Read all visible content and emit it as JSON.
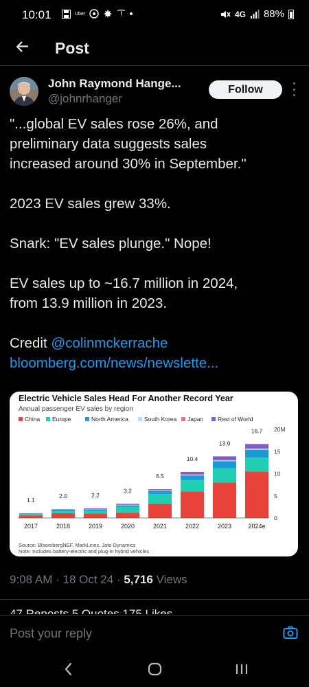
{
  "status_bar": {
    "time": "10:01",
    "left_icons": [
      "save-icon",
      "uber-icon",
      "wifi-call-icon",
      "maple-leaf-icon",
      "tesla-icon",
      "dot-icon"
    ],
    "uber_label": "Uber",
    "network": "4G",
    "battery": "88%"
  },
  "header": {
    "title": "Post"
  },
  "author": {
    "name": "John Raymond Hange...",
    "handle": "@johnrhanger",
    "follow_label": "Follow"
  },
  "tweet": {
    "line1": "\"...global EV sales rose 26%, and",
    "line2": "preliminary data suggests sales",
    "line3": "increased around 30% in September.\"",
    "line4": "2023 EV sales grew 33%.",
    "line5": "Snark: \"EV sales plunge.\" Nope!",
    "line6": "EV sales up to ~16.7 million in 2024,",
    "line7": "from 13.9 million in 2023.",
    "credit_label": "Credit ",
    "credit_link": "@colinmckerrache",
    "url": "bloomberg.com/news/newslette..."
  },
  "chart_data": {
    "type": "bar",
    "stacked": true,
    "title": "Electric Vehicle Sales Head For Another Record Year",
    "subtitle": "Annual passenger EV sales by region",
    "categories": [
      "2017",
      "2018",
      "2019",
      "2020",
      "2021",
      "2022",
      "2023",
      "2024e"
    ],
    "totals": [
      "1.1",
      "2.0",
      "2.2",
      "3.2",
      "6.5",
      "10.4",
      "13.9",
      "16.7"
    ],
    "ylim": [
      0,
      20
    ],
    "yticks": [
      "20M",
      "15",
      "10",
      "5",
      "0"
    ],
    "series": [
      {
        "name": "China",
        "color": "#e8433a",
        "values": [
          0.6,
          1.1,
          1.0,
          1.2,
          3.2,
          6.0,
          8.0,
          10.5
        ]
      },
      {
        "name": "Europe",
        "color": "#20cfb2",
        "values": [
          0.3,
          0.4,
          0.6,
          1.3,
          2.2,
          2.6,
          3.2,
          3.1
        ]
      },
      {
        "name": "North America",
        "color": "#1a9ad6",
        "values": [
          0.15,
          0.35,
          0.35,
          0.35,
          0.65,
          1.0,
          1.6,
          1.8
        ]
      },
      {
        "name": "South Korea",
        "color": "#a9e4ef",
        "values": [
          0.02,
          0.04,
          0.05,
          0.1,
          0.15,
          0.17,
          0.18,
          0.17
        ]
      },
      {
        "name": "Japan",
        "color": "#e86aa8",
        "values": [
          0.03,
          0.05,
          0.05,
          0.05,
          0.05,
          0.1,
          0.12,
          0.13
        ]
      },
      {
        "name": "Rest of World",
        "color": "#7c5fc8",
        "values": [
          0.0,
          0.06,
          0.15,
          0.2,
          0.25,
          0.53,
          0.8,
          1.0
        ]
      }
    ],
    "source": "Source: BloombergNEF, MarkLines, Jato Dynamics",
    "note": "Note: Includes battery-electric and plug-in hybrid vehicles",
    "grid": false
  },
  "meta": {
    "time": "9:08 AM",
    "sep1": " · ",
    "date": "18 Oct 24",
    "sep2": " · ",
    "views_count": "5,716",
    "views_label": " Views"
  },
  "stats_peek": "47 Reposts  5 Quotes  175 Likes",
  "reply": {
    "placeholder": "Post your reply"
  }
}
